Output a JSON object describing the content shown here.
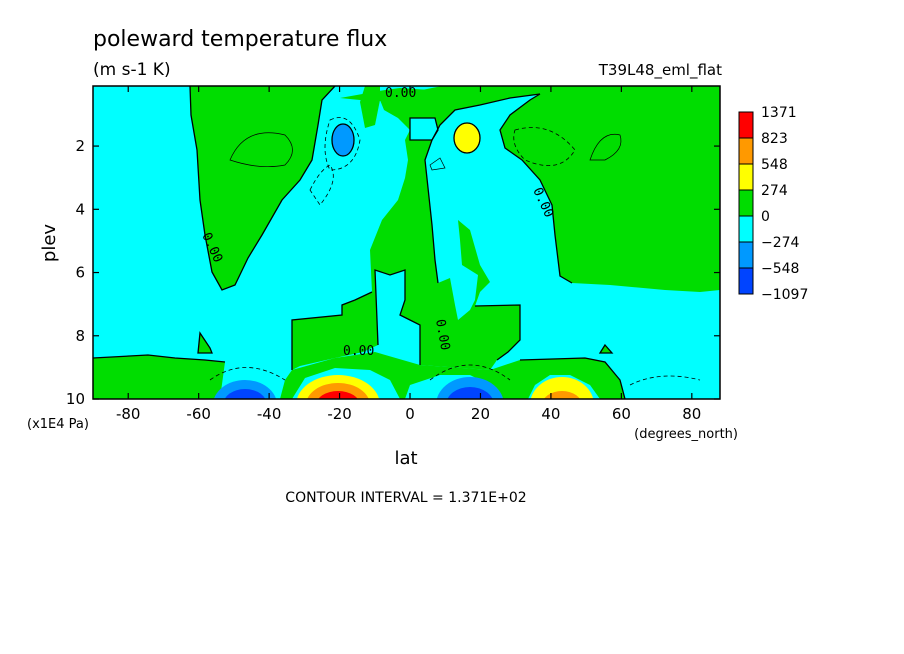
{
  "chart_data": {
    "type": "heatmap",
    "subtype": "filled-contour",
    "title": "poleward temperature flux",
    "units": "(m s-1 K)",
    "run_label": "T39L48_eml_flat",
    "xlabel": "lat",
    "x_units_label": "(degrees_north)",
    "ylabel": "plev",
    "y_units_label": "(x1E4 Pa)",
    "xlim": [
      -90,
      88
    ],
    "ylim": [
      0.1,
      10
    ],
    "y_inverted": true,
    "x_ticks": [
      -80,
      -60,
      -40,
      -20,
      0,
      20,
      40,
      60,
      80
    ],
    "x_tick_labels": [
      "-80",
      "-60",
      "-40",
      "-20",
      "0",
      "20",
      "40",
      "60",
      "80"
    ],
    "y_ticks": [
      2,
      4,
      6,
      8,
      10
    ],
    "y_tick_labels": [
      "2",
      "4",
      "6",
      "8",
      "10"
    ],
    "contour_interval_text": "CONTOUR INTERVAL = 1.371E+02",
    "contour_interval": 137.1,
    "zero_contour_label": "0.00",
    "legend": {
      "position": "right",
      "levels": [
        "1371",
        "823",
        "548",
        "274",
        "0",
        "-274",
        "-548",
        "-1097"
      ],
      "colors": [
        "#ff0000",
        "#ff9900",
        "#ffff00",
        "#00dd00",
        "#00ffff",
        "#0099ff",
        "#0044ff"
      ]
    },
    "background_value_color": "#00ffff",
    "features": [
      {
        "kind": "max",
        "lat": -20,
        "plev": 9.7,
        "value": 1371,
        "color": "#ff0000"
      },
      {
        "kind": "max",
        "lat": 42,
        "plev": 9.7,
        "value": 548,
        "color": "#ffff00"
      },
      {
        "kind": "max",
        "lat": 18,
        "plev": 1.9,
        "value": 548,
        "color": "#ffff00"
      },
      {
        "kind": "min",
        "lat": -42,
        "plev": 9.7,
        "value": -1097,
        "color": "#0044ff"
      },
      {
        "kind": "min",
        "lat": 18,
        "plev": 9.7,
        "value": -1097,
        "color": "#0044ff"
      },
      {
        "kind": "min",
        "lat": -18,
        "plev": 1.8,
        "value": -548,
        "color": "#0099ff"
      }
    ]
  },
  "colors": {
    "positive_fill": "#00dd00",
    "negative_fill": "#00ffff"
  }
}
